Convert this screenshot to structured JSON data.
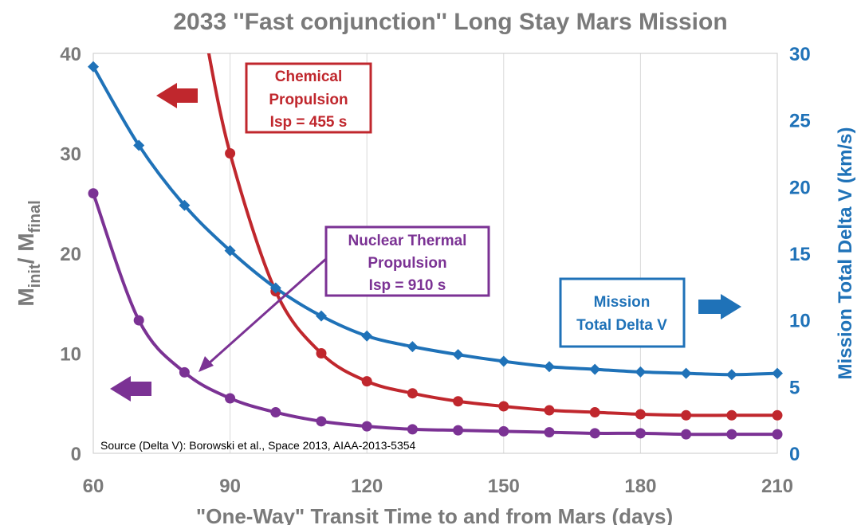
{
  "chart_data": {
    "type": "line",
    "title": "2033 ''Fast conjunction'' Long Stay Mars Mission",
    "xlabel": "\"One-Way\" Transit Time to and from Mars (days)",
    "ylabel_left": {
      "main": "M",
      "sub1": "init",
      "sep": "/ M",
      "sub2": "final"
    },
    "ylabel_right": "Mission Total Delta V (km/s)",
    "xlim": [
      60,
      210
    ],
    "ylim_left": [
      0,
      40
    ],
    "ylim_right": [
      0,
      30
    ],
    "x_ticks": [
      60,
      90,
      120,
      150,
      180,
      210
    ],
    "y_ticks_left": [
      0,
      10,
      20,
      30,
      40
    ],
    "y_ticks_right": [
      0,
      5,
      10,
      15,
      20,
      25,
      30
    ],
    "grid": "vertical",
    "series": [
      {
        "key": "chemical",
        "axis": "left",
        "color": "#c0272d",
        "x": [
          90,
          100,
          110,
          120,
          130,
          140,
          150,
          160,
          170,
          180,
          190,
          200,
          210
        ],
        "y": [
          30.0,
          16.2,
          10.0,
          7.2,
          6.0,
          5.2,
          4.7,
          4.3,
          4.1,
          3.9,
          3.8,
          3.8,
          3.8
        ]
      },
      {
        "key": "ntp",
        "axis": "left",
        "color": "#7b3294",
        "x": [
          60,
          70,
          80,
          90,
          100,
          110,
          120,
          130,
          140,
          150,
          160,
          170,
          180,
          190,
          200,
          210
        ],
        "y": [
          26.0,
          13.3,
          8.1,
          5.5,
          4.1,
          3.2,
          2.7,
          2.4,
          2.3,
          2.2,
          2.1,
          2.0,
          2.0,
          1.9,
          1.9,
          1.9
        ]
      },
      {
        "key": "deltav",
        "axis": "right",
        "color": "#1f72b8",
        "x": [
          60,
          70,
          80,
          90,
          100,
          110,
          120,
          130,
          140,
          150,
          160,
          170,
          180,
          190,
          200,
          210
        ],
        "y": [
          29.0,
          23.1,
          18.6,
          15.2,
          12.4,
          10.3,
          8.8,
          8.0,
          7.4,
          6.9,
          6.5,
          6.3,
          6.1,
          6.0,
          5.9,
          6.0
        ]
      }
    ],
    "chemical_curve_note": "curve continues above 40 near x=85",
    "annotations": {
      "chemical": [
        "Chemical",
        "Propulsion",
        "Isp = 455 s"
      ],
      "ntp": [
        "Nuclear Thermal",
        "Propulsion",
        "Isp = 910 s"
      ],
      "deltav": [
        "Mission",
        "Total Delta V"
      ],
      "source": "Source (Delta V): Borowski et al., Space 2013, AIAA-2013-5354"
    }
  }
}
